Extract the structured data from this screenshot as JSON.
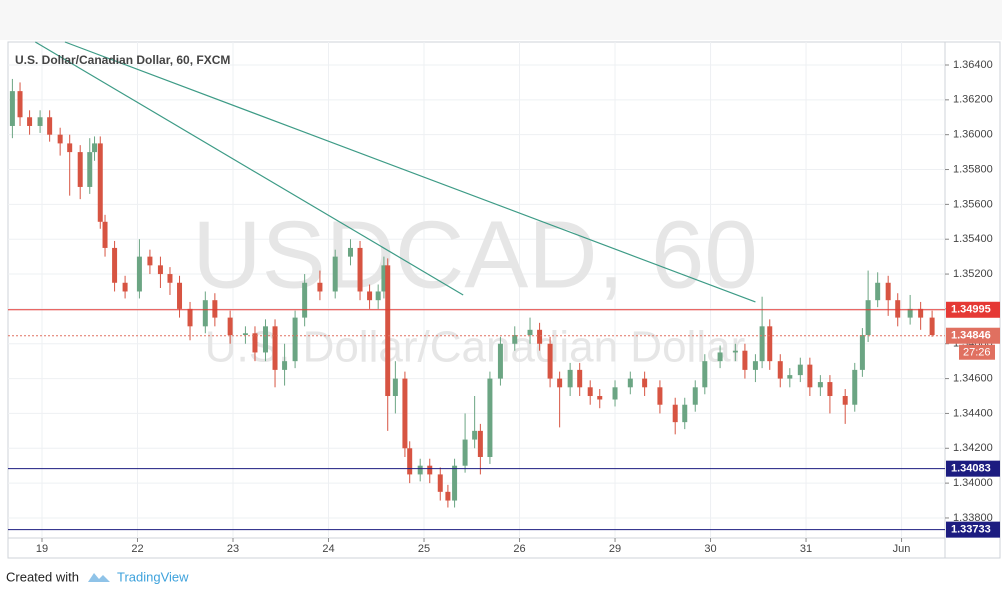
{
  "chart_data": {
    "type": "candlestick",
    "title": "U.S. Dollar/Canadian Dollar, 60, FXCM",
    "watermark": [
      "USDCAD, 60",
      "U.S. Dollar/Canadian Dollar"
    ],
    "up_color": "#6ba583",
    "down_color": "#d75442",
    "xlim": [
      -0.356,
      9.455
    ],
    "xticks": [
      {
        "value": 0,
        "label": "19"
      },
      {
        "value": 1,
        "label": "22"
      },
      {
        "value": 2,
        "label": "23"
      },
      {
        "value": 3,
        "label": "24"
      },
      {
        "value": 4,
        "label": "25"
      },
      {
        "value": 5,
        "label": "26"
      },
      {
        "value": 6,
        "label": "29"
      },
      {
        "value": 7,
        "label": "30"
      },
      {
        "value": 8,
        "label": "31"
      },
      {
        "value": 9,
        "label": "Jun"
      }
    ],
    "ylim": [
      1.33685,
      1.36532
    ],
    "yticks": [
      {
        "value": 1.338,
        "label": "1.33800"
      },
      {
        "value": 1.34,
        "label": "1.34000"
      },
      {
        "value": 1.342,
        "label": "1.34200"
      },
      {
        "value": 1.344,
        "label": "1.34400"
      },
      {
        "value": 1.346,
        "label": "1.34600"
      },
      {
        "value": 1.348,
        "label": "1.34800"
      },
      {
        "value": 1.35,
        "label": "1.35000"
      },
      {
        "value": 1.352,
        "label": "1.35200"
      },
      {
        "value": 1.354,
        "label": "1.35400"
      },
      {
        "value": 1.356,
        "label": "1.35600"
      },
      {
        "value": 1.358,
        "label": "1.35800"
      },
      {
        "value": 1.36,
        "label": "1.36000"
      },
      {
        "value": 1.362,
        "label": "1.36200"
      },
      {
        "value": 1.364,
        "label": "1.36400"
      }
    ],
    "grid": true,
    "x": [
      -0.31,
      -0.23,
      -0.13,
      -0.02,
      0.08,
      0.19,
      0.29,
      0.4,
      0.5,
      0.55,
      0.61,
      0.66,
      0.76,
      0.87,
      1.02,
      1.13,
      1.24,
      1.34,
      1.44,
      1.55,
      1.71,
      1.81,
      1.97,
      2.13,
      2.23,
      2.34,
      2.44,
      2.54,
      2.65,
      2.75,
      2.91,
      3.07,
      3.23,
      3.33,
      3.43,
      3.52,
      3.58,
      3.62,
      3.7,
      3.8,
      3.85,
      3.96,
      4.06,
      4.17,
      4.25,
      4.32,
      4.43,
      4.53,
      4.59,
      4.69,
      4.8,
      4.95,
      5.11,
      5.21,
      5.32,
      5.42,
      5.53,
      5.63,
      5.74,
      5.84,
      6.0,
      6.16,
      6.31,
      6.47,
      6.63,
      6.73,
      6.84,
      6.94,
      7.1,
      7.26,
      7.36,
      7.47,
      7.54,
      7.62,
      7.73,
      7.83,
      7.94,
      8.04,
      8.15,
      8.25,
      8.41,
      8.51,
      8.59,
      8.65,
      8.75,
      8.86,
      8.96,
      9.09,
      9.2,
      9.32
    ],
    "open": [
      1.3605,
      1.3625,
      1.361,
      1.3605,
      1.361,
      1.36,
      1.3595,
      1.359,
      1.357,
      1.359,
      1.3595,
      1.355,
      1.3535,
      1.3515,
      1.351,
      1.353,
      1.3525,
      1.352,
      1.3515,
      1.35,
      1.349,
      1.3505,
      1.3495,
      1.3485,
      1.3486,
      1.3475,
      1.349,
      1.3465,
      1.347,
      1.3495,
      1.3515,
      1.351,
      1.353,
      1.3535,
      1.351,
      1.3505,
      1.351,
      1.3525,
      1.345,
      1.346,
      1.342,
      1.3405,
      1.341,
      1.3405,
      1.3395,
      1.339,
      1.341,
      1.3425,
      1.343,
      1.3415,
      1.346,
      1.348,
      1.3485,
      1.3488,
      1.348,
      1.346,
      1.3455,
      1.3465,
      1.3455,
      1.345,
      1.3448,
      1.3455,
      1.346,
      1.3455,
      1.3445,
      1.3435,
      1.3445,
      1.3455,
      1.347,
      1.3475,
      1.3476,
      1.3465,
      1.347,
      1.349,
      1.347,
      1.346,
      1.3462,
      1.3468,
      1.3455,
      1.3458,
      1.345,
      1.3445,
      1.3465,
      1.3485,
      1.3505,
      1.3515,
      1.3505,
      1.3495,
      1.35,
      1.3495
    ],
    "high": [
      1.3632,
      1.363,
      1.3614,
      1.3614,
      1.3614,
      1.3604,
      1.36,
      1.3594,
      1.3598,
      1.3599,
      1.3599,
      1.3554,
      1.3539,
      1.3519,
      1.354,
      1.3534,
      1.353,
      1.3524,
      1.3519,
      1.3504,
      1.351,
      1.3509,
      1.3499,
      1.349,
      1.349,
      1.3494,
      1.3494,
      1.348,
      1.3499,
      1.352,
      1.3522,
      1.3534,
      1.354,
      1.3539,
      1.3514,
      1.3514,
      1.353,
      1.3529,
      1.347,
      1.3464,
      1.3424,
      1.3414,
      1.3414,
      1.3409,
      1.3399,
      1.3414,
      1.344,
      1.345,
      1.3434,
      1.3464,
      1.3484,
      1.349,
      1.3495,
      1.3492,
      1.3484,
      1.3464,
      1.3469,
      1.3469,
      1.3459,
      1.3454,
      1.3459,
      1.3464,
      1.3464,
      1.3459,
      1.3449,
      1.3449,
      1.3459,
      1.3474,
      1.3479,
      1.348,
      1.348,
      1.3474,
      1.3507,
      1.3494,
      1.3474,
      1.3466,
      1.3472,
      1.3472,
      1.3462,
      1.3462,
      1.3454,
      1.3469,
      1.3489,
      1.3522,
      1.3521,
      1.3519,
      1.3509,
      1.3508,
      1.3504,
      1.3499
    ],
    "low": [
      1.3598,
      1.3605,
      1.36,
      1.3601,
      1.3596,
      1.3588,
      1.3565,
      1.3563,
      1.3566,
      1.3585,
      1.3546,
      1.353,
      1.351,
      1.3506,
      1.3506,
      1.352,
      1.3512,
      1.3508,
      1.3495,
      1.3482,
      1.3486,
      1.349,
      1.348,
      1.348,
      1.347,
      1.347,
      1.3455,
      1.3456,
      1.3466,
      1.349,
      1.3505,
      1.3506,
      1.3525,
      1.3505,
      1.35,
      1.35,
      1.3506,
      1.343,
      1.344,
      1.3415,
      1.34,
      1.3401,
      1.34,
      1.339,
      1.3386,
      1.3386,
      1.3406,
      1.342,
      1.3405,
      1.3411,
      1.3456,
      1.3476,
      1.348,
      1.3476,
      1.3455,
      1.3432,
      1.345,
      1.345,
      1.3445,
      1.3443,
      1.3444,
      1.3451,
      1.345,
      1.344,
      1.3428,
      1.3431,
      1.3441,
      1.3451,
      1.3466,
      1.347,
      1.346,
      1.3458,
      1.3466,
      1.3465,
      1.3455,
      1.3455,
      1.3458,
      1.345,
      1.345,
      1.344,
      1.3434,
      1.3441,
      1.3461,
      1.3481,
      1.3501,
      1.3496,
      1.349,
      1.3491,
      1.3488,
      1.3484
    ],
    "close": [
      1.3625,
      1.361,
      1.3605,
      1.361,
      1.36,
      1.3595,
      1.359,
      1.357,
      1.359,
      1.3595,
      1.355,
      1.3535,
      1.3515,
      1.351,
      1.353,
      1.3525,
      1.352,
      1.3515,
      1.35,
      1.349,
      1.3505,
      1.3495,
      1.3485,
      1.3486,
      1.3475,
      1.349,
      1.3465,
      1.347,
      1.3495,
      1.3515,
      1.351,
      1.353,
      1.3535,
      1.351,
      1.3505,
      1.351,
      1.3525,
      1.345,
      1.346,
      1.342,
      1.3405,
      1.341,
      1.3405,
      1.3395,
      1.339,
      1.341,
      1.3425,
      1.343,
      1.3415,
      1.346,
      1.348,
      1.3485,
      1.3488,
      1.348,
      1.346,
      1.3455,
      1.3465,
      1.3455,
      1.345,
      1.3448,
      1.3455,
      1.346,
      1.3455,
      1.3445,
      1.3435,
      1.3445,
      1.3455,
      1.347,
      1.3475,
      1.3476,
      1.3465,
      1.347,
      1.349,
      1.347,
      1.346,
      1.3462,
      1.3468,
      1.3455,
      1.3458,
      1.345,
      1.3445,
      1.3465,
      1.3485,
      1.3505,
      1.3515,
      1.3505,
      1.3495,
      1.35,
      1.3495,
      1.3485
    ],
    "trendlines": [
      {
        "x": [
          -0.07,
          4.41
        ],
        "y": [
          1.36532,
          1.3508
        ],
        "color": "#3d9b86"
      },
      {
        "x": [
          0.24,
          7.47
        ],
        "y": [
          1.36532,
          1.3504
        ],
        "color": "#3d9b86"
      }
    ],
    "levels": [
      {
        "value": 1.34995,
        "color": "#e53935",
        "style": "solid"
      },
      {
        "value": 1.34846,
        "color": "#e07060",
        "style": "dotted",
        "countdown": "27:26"
      },
      {
        "value": 1.34083,
        "color": "#1c1c80",
        "style": "solid"
      },
      {
        "value": 1.33733,
        "color": "#1c1c80",
        "style": "solid"
      }
    ]
  },
  "footer": {
    "prefix": "Created with",
    "brand": "TradingView"
  }
}
